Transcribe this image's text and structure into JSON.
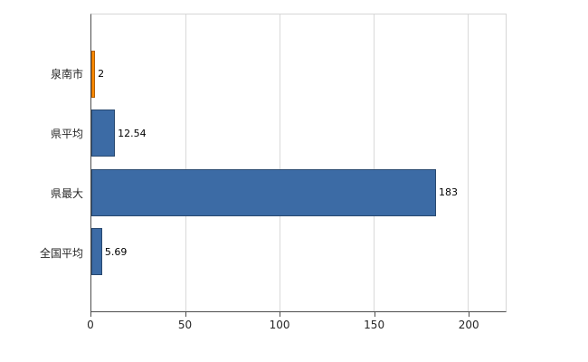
{
  "chart_data": {
    "type": "bar",
    "orientation": "horizontal",
    "title": "",
    "xlabel": "",
    "ylabel": "",
    "categories": [
      "泉南市",
      "県平均",
      "県最大",
      "全国平均"
    ],
    "values": [
      2,
      12.54,
      183,
      5.69
    ],
    "value_labels": [
      "2",
      "12.54",
      "183",
      "5.69"
    ],
    "bar_colors": [
      "#ff8a00",
      "#3c6ba5",
      "#3c6ba5",
      "#3c6ba5"
    ],
    "bar_border_colors": [
      "#b35f00",
      "#28486f",
      "#28486f",
      "#28486f"
    ],
    "xlim": [
      0,
      220
    ],
    "xticks": [
      0,
      50,
      100,
      150,
      200
    ],
    "xtick_labels": [
      "0",
      "50",
      "100",
      "150",
      "200"
    ],
    "grid": true,
    "grid_color": "#d9d9d9",
    "legend": "none"
  }
}
